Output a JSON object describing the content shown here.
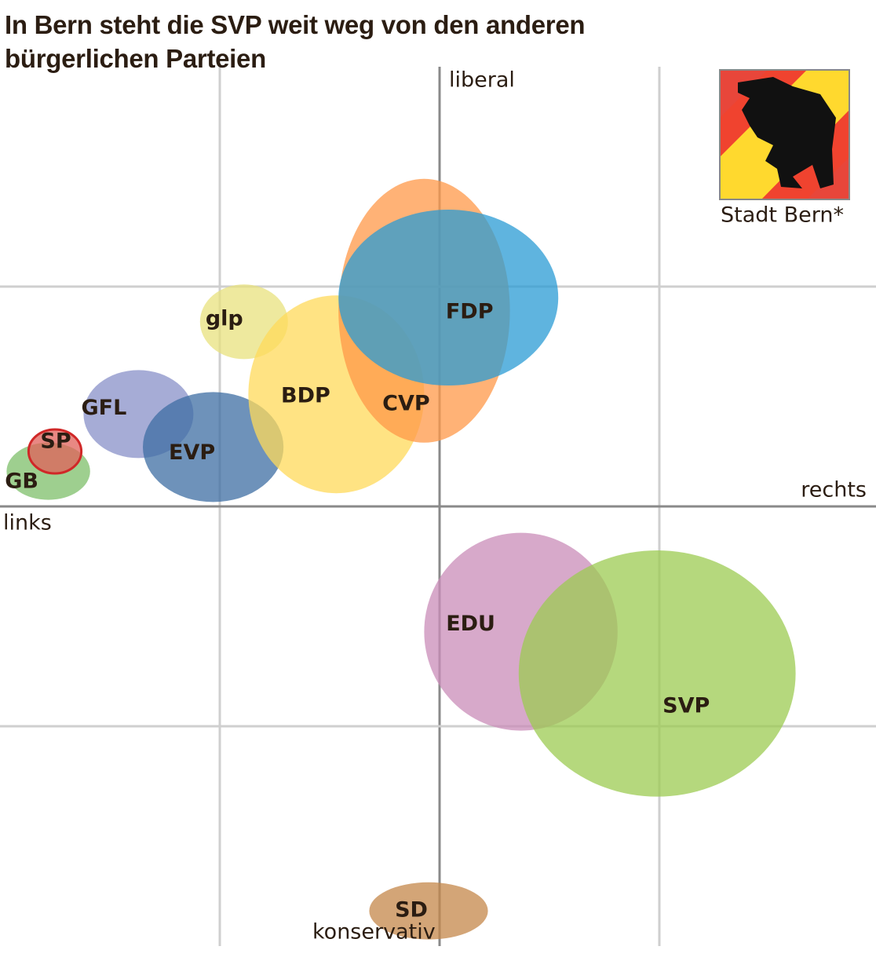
{
  "chart_data": {
    "type": "ellipse",
    "title": "In Bern steht die SVP weit weg von den anderen bürgerlichen Parteien",
    "x_label_right": "rechts",
    "x_label_left": "links",
    "y_label_top": "liberal",
    "y_label_bottom": "konservativ",
    "flag_caption": "Stadt Bern*",
    "xlim": [
      -2,
      2
    ],
    "ylim": [
      -2,
      2
    ],
    "xticks": [
      -1,
      0,
      1
    ],
    "yticks": [
      -1,
      0,
      1
    ],
    "grid": true,
    "series": [
      {
        "name": "GB",
        "color": "#7dbf6a",
        "x": -1.78,
        "y": 0.16,
        "rx": 0.19,
        "ry": 0.13
      },
      {
        "name": "SP",
        "color": "#e0605a",
        "x": -1.75,
        "y": 0.25,
        "rx": 0.12,
        "ry": 0.1
      },
      {
        "name": "GFL",
        "color": "#8890c8",
        "x": -1.37,
        "y": 0.42,
        "rx": 0.25,
        "ry": 0.2
      },
      {
        "name": "EVP",
        "color": "#3e6ea3",
        "x": -1.03,
        "y": 0.27,
        "rx": 0.32,
        "ry": 0.25
      },
      {
        "name": "glp",
        "color": "#e8e27e",
        "x": -0.89,
        "y": 0.84,
        "rx": 0.2,
        "ry": 0.17
      },
      {
        "name": "BDP",
        "color": "#ffd95a",
        "x": -0.47,
        "y": 0.51,
        "rx": 0.4,
        "ry": 0.45
      },
      {
        "name": "CVP",
        "color": "#ff9848",
        "x": -0.07,
        "y": 0.89,
        "rx": 0.39,
        "ry": 0.6
      },
      {
        "name": "FDP",
        "color": "#2a9bd4",
        "x": 0.04,
        "y": 0.95,
        "rx": 0.5,
        "ry": 0.4
      },
      {
        "name": "EDU",
        "color": "#c98cb8",
        "x": 0.37,
        "y": -0.57,
        "rx": 0.44,
        "ry": 0.45
      },
      {
        "name": "SVP",
        "color": "#9ccb52",
        "x": 0.99,
        "y": -0.76,
        "rx": 0.63,
        "ry": 0.56
      },
      {
        "name": "SD",
        "color": "#c4874a",
        "x": -0.05,
        "y": -1.84,
        "rx": 0.27,
        "ry": 0.13
      }
    ]
  }
}
